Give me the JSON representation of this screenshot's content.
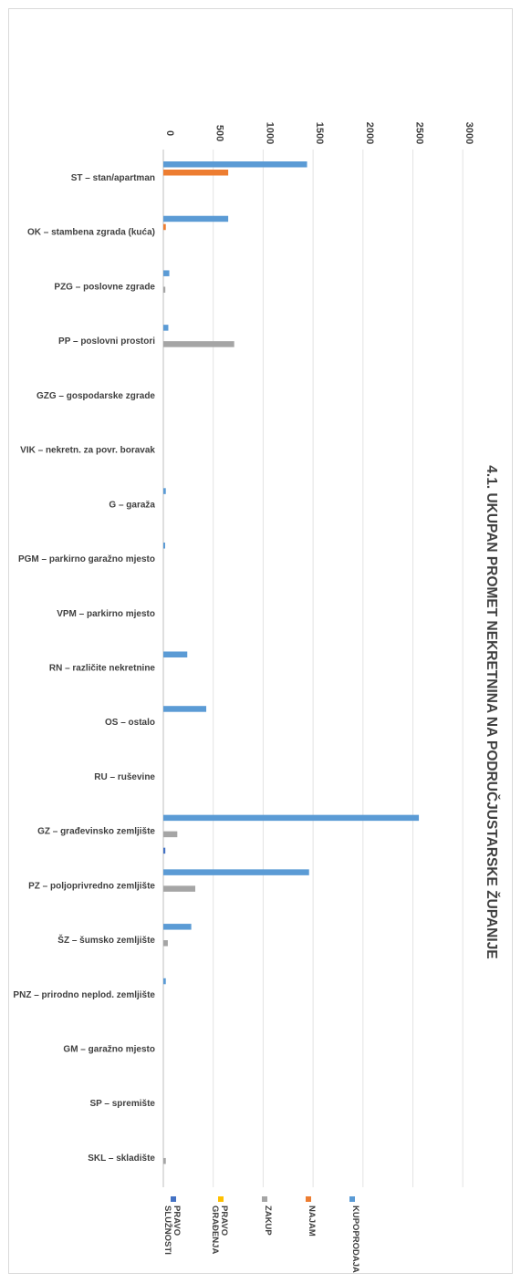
{
  "chart_data": {
    "type": "bar",
    "orientation": "horizontal",
    "title": "4.1. UKUPAN PROMET NEKRETNINA NA PODRUČJUSTARSKE  ŽUPANIJE",
    "xlim": [
      0,
      3000
    ],
    "ticks": [
      "0",
      "500",
      "1000",
      "1500",
      "2000",
      "2500",
      "3000"
    ],
    "grid": true,
    "legend_position": "bottom",
    "categories": [
      "ST – stan/apartman",
      "OK – stambena zgrada (kuća)",
      "PZG – poslovne zgrade",
      "PP – poslovni prostori",
      "GZG – gospodarske zgrade",
      "VIK – nekretn. za povr. boravak",
      "G – garaža",
      "PGM – parkirno garažno mjesto",
      "VPM – parkirno mjesto",
      "RN – različite nekretnine",
      "OS – ostalo",
      "RU – ruševine",
      "GZ – građevinsko zemljište",
      "PZ – poljoprivredno zemljište",
      "ŠZ – šumsko zemljište",
      "PNZ – prirodno neplod. zemljište",
      "GM – garažno mjesto",
      "SP – spremište",
      "SKL – skladište"
    ],
    "series": [
      {
        "name": "KUPOPRODAJA",
        "color": "#5b9bd5",
        "values": [
          1440,
          650,
          60,
          50,
          0,
          0,
          25,
          15,
          0,
          240,
          430,
          0,
          2560,
          1460,
          280,
          25,
          0,
          0,
          0
        ]
      },
      {
        "name": "NAJAM",
        "color": "#ed7d31",
        "values": [
          650,
          25,
          0,
          0,
          0,
          0,
          0,
          0,
          0,
          0,
          0,
          0,
          0,
          0,
          0,
          0,
          0,
          0,
          0
        ]
      },
      {
        "name": "ZAKUP",
        "color": "#a5a5a5",
        "values": [
          0,
          0,
          20,
          710,
          0,
          0,
          0,
          0,
          0,
          0,
          0,
          0,
          140,
          320,
          45,
          0,
          0,
          0,
          25
        ]
      },
      {
        "name": "PRAVO GRAĐENJA",
        "color": "#ffc000",
        "values": [
          0,
          0,
          0,
          0,
          0,
          0,
          0,
          0,
          0,
          0,
          0,
          0,
          0,
          0,
          0,
          0,
          0,
          0,
          0
        ]
      },
      {
        "name": "PRAVO SLUŽNOSTI",
        "color": "#4472c4",
        "values": [
          0,
          0,
          0,
          0,
          0,
          0,
          0,
          0,
          0,
          0,
          0,
          0,
          20,
          0,
          0,
          0,
          0,
          0,
          0
        ]
      }
    ]
  }
}
